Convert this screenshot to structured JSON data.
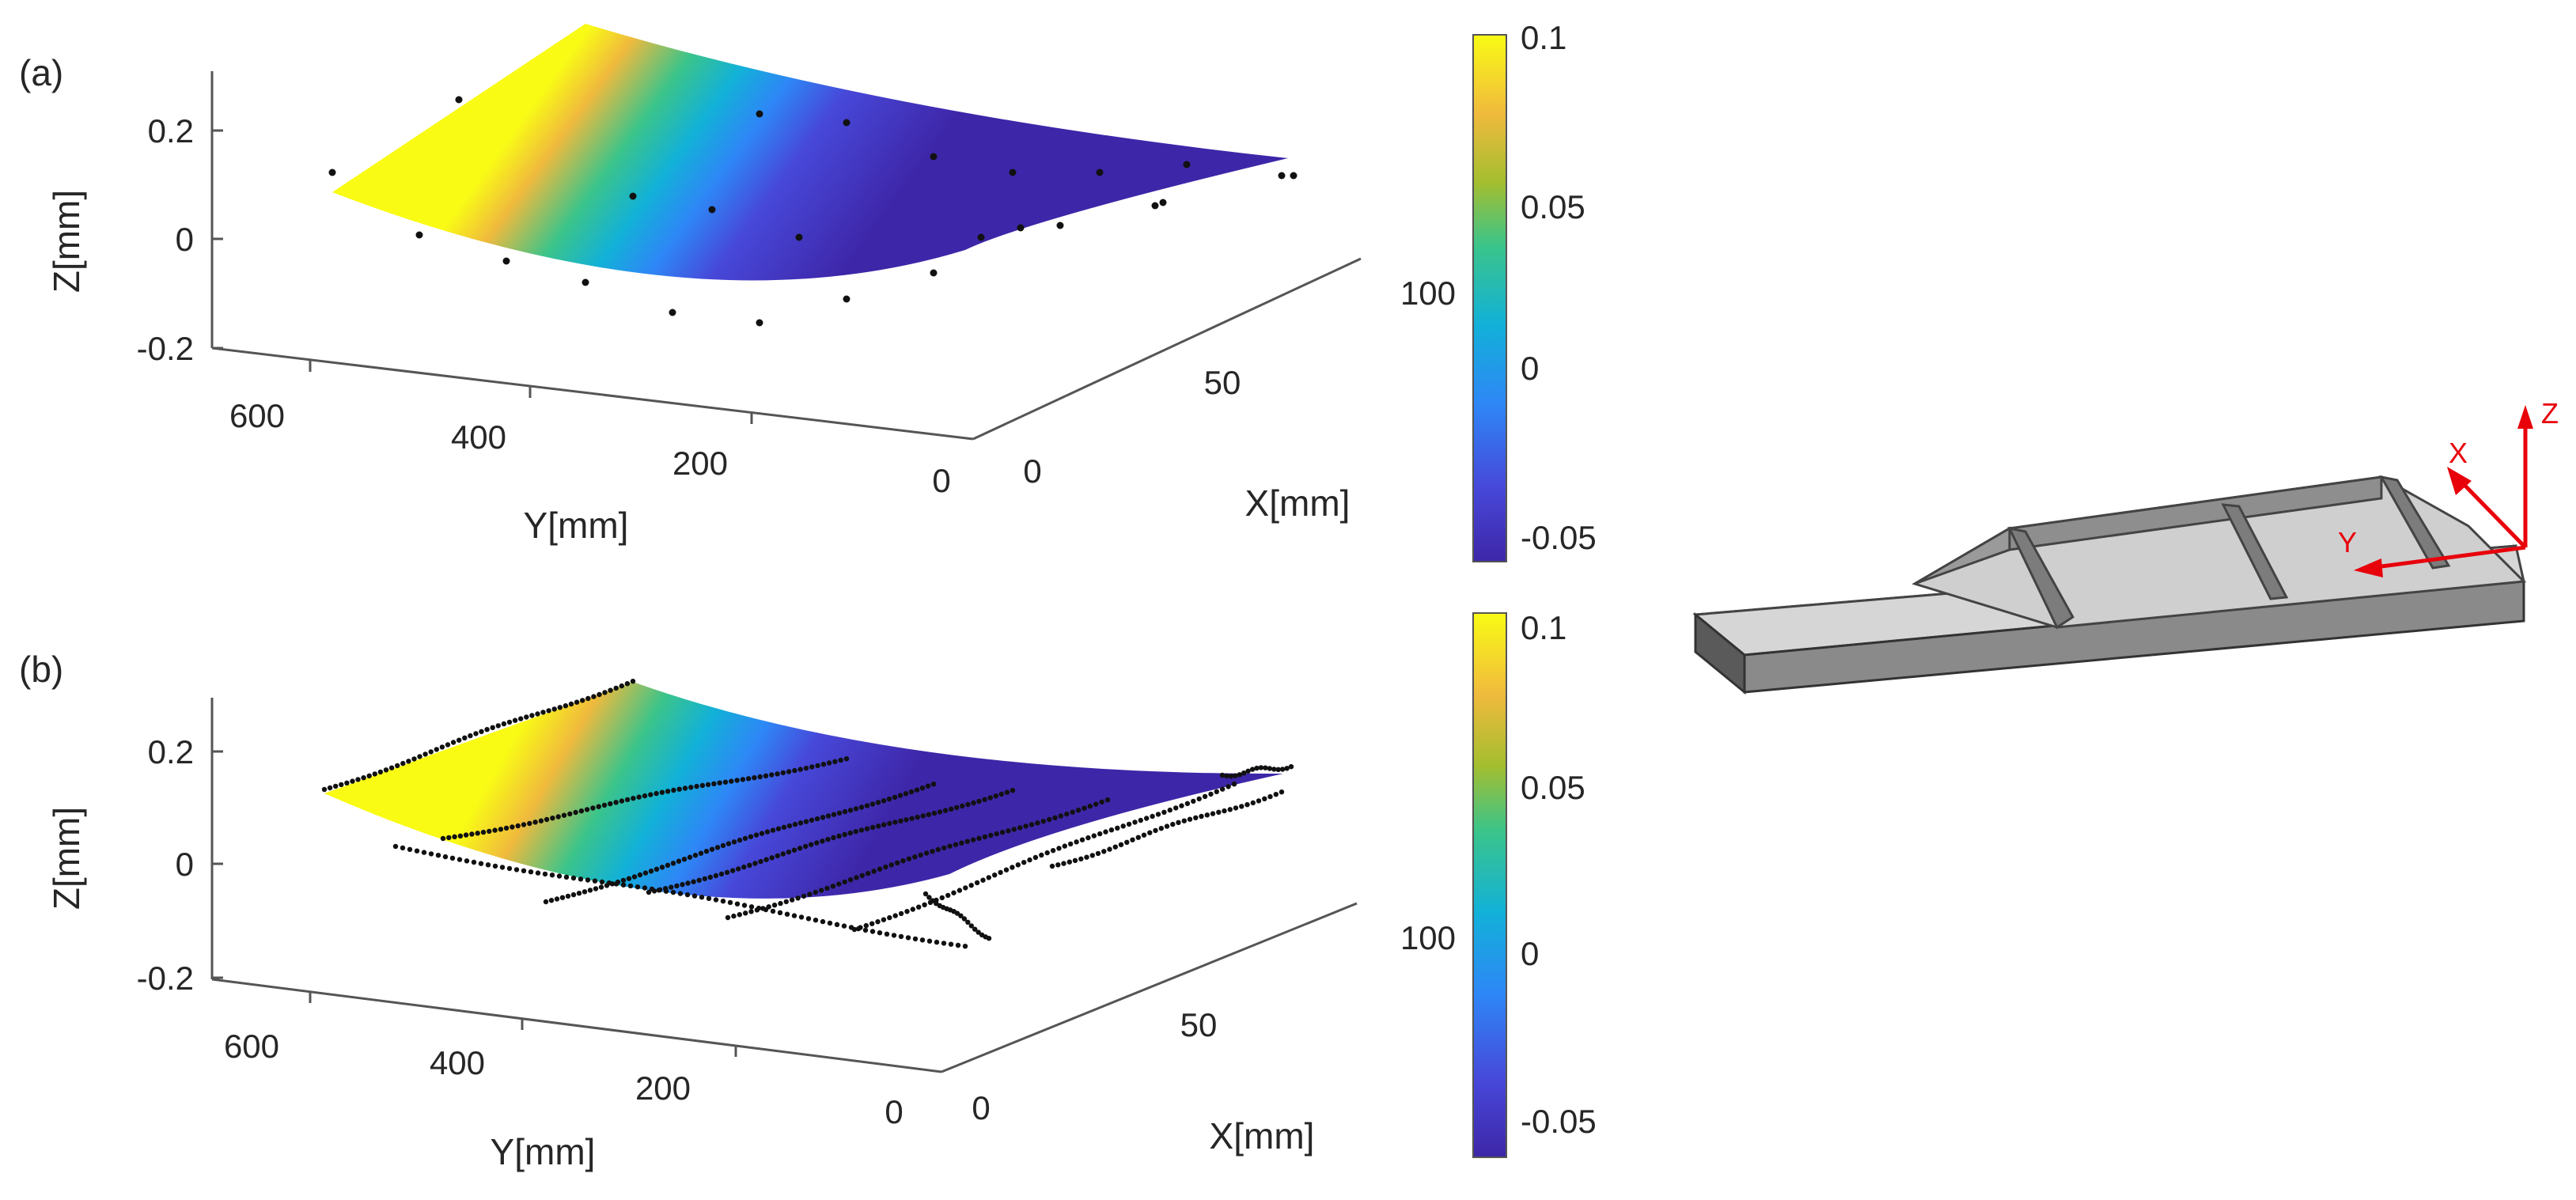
{
  "colorbar_colors": [
    "#3e26a8",
    "#4748d9",
    "#2e87f6",
    "#12b1d8",
    "#3bc48a",
    "#a4be2f",
    "#f0ba3d",
    "#f9fb15"
  ],
  "chart_data": [
    {
      "panel_label": "(a)",
      "type": "surface3d",
      "title": "",
      "xlabel": "X[mm]",
      "ylabel": "Y[mm]",
      "zlabel": "Z[mm]",
      "x_ticks": [
        "0",
        "50",
        "100"
      ],
      "y_ticks": [
        "600",
        "400",
        "200",
        "0"
      ],
      "z_ticks": [
        "0.2",
        "0",
        "-0.2"
      ],
      "xlim": [
        0,
        120
      ],
      "ylim": [
        0,
        650
      ],
      "zlim": [
        -0.2,
        0.3
      ],
      "surface_corners": [
        {
          "x": 0,
          "y": 600,
          "z": 0.08
        },
        {
          "x": 120,
          "y": 600,
          "z": 0.38
        },
        {
          "x": 120,
          "y": 0,
          "z": 0.2
        },
        {
          "x": 0,
          "y": 0,
          "z": 0.09
        }
      ],
      "colorbar": {
        "ticks": [
          "0.1",
          "0.05",
          "0",
          "-0.05"
        ],
        "range": [
          -0.06,
          0.1
        ]
      },
      "points": "sparse"
    },
    {
      "panel_label": "(b)",
      "type": "surface3d",
      "title": "",
      "xlabel": "X[mm]",
      "ylabel": "Y[mm]",
      "zlabel": "Z[mm]",
      "x_ticks": [
        "0",
        "50",
        "100"
      ],
      "y_ticks": [
        "600",
        "400",
        "200",
        "0"
      ],
      "z_ticks": [
        "0.2",
        "0",
        "-0.2"
      ],
      "xlim": [
        0,
        120
      ],
      "ylim": [
        0,
        650
      ],
      "zlim": [
        -0.2,
        0.3
      ],
      "surface_corners": [
        {
          "x": 0,
          "y": 600,
          "z": 0.1
        },
        {
          "x": 120,
          "y": 600,
          "z": 0.38
        },
        {
          "x": 120,
          "y": 0,
          "z": 0.18
        },
        {
          "x": 0,
          "y": 0,
          "z": 0.07
        }
      ],
      "colorbar": {
        "ticks": [
          "0.1",
          "0.05",
          "0",
          "-0.05"
        ],
        "range": [
          -0.06,
          0.1
        ]
      },
      "points": "dense-scan-lines"
    }
  ],
  "schematic": {
    "axis_labels": {
      "x": "X",
      "y": "Y",
      "z": "Z"
    },
    "axis_color": "#e8000b"
  }
}
